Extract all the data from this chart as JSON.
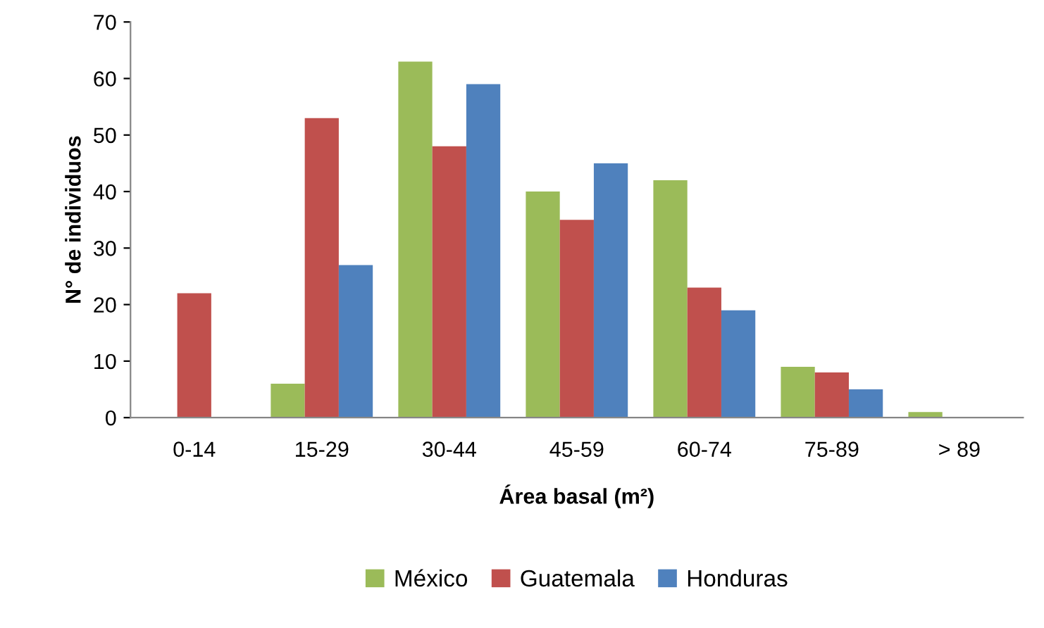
{
  "chart_data": {
    "type": "bar",
    "xlabel": "Área basal (m²)",
    "ylabel": "N° de individuos",
    "categories": [
      "0-14",
      "15-29",
      "30-44",
      "45-59",
      "60-74",
      "75-89",
      "> 89"
    ],
    "series": [
      {
        "name": "México",
        "color": "#9bbb59",
        "values": [
          0,
          6,
          63,
          40,
          42,
          9,
          1
        ]
      },
      {
        "name": "Guatemala",
        "color": "#c0504d",
        "values": [
          22,
          53,
          48,
          35,
          23,
          8,
          0
        ]
      },
      {
        "name": "Honduras",
        "color": "#4f81bd",
        "values": [
          0,
          27,
          59,
          45,
          19,
          5,
          0
        ]
      }
    ],
    "ylim": [
      0,
      70
    ],
    "yticks": [
      0,
      10,
      20,
      30,
      40,
      50,
      60,
      70
    ],
    "grid": false,
    "legend": "bottom"
  }
}
